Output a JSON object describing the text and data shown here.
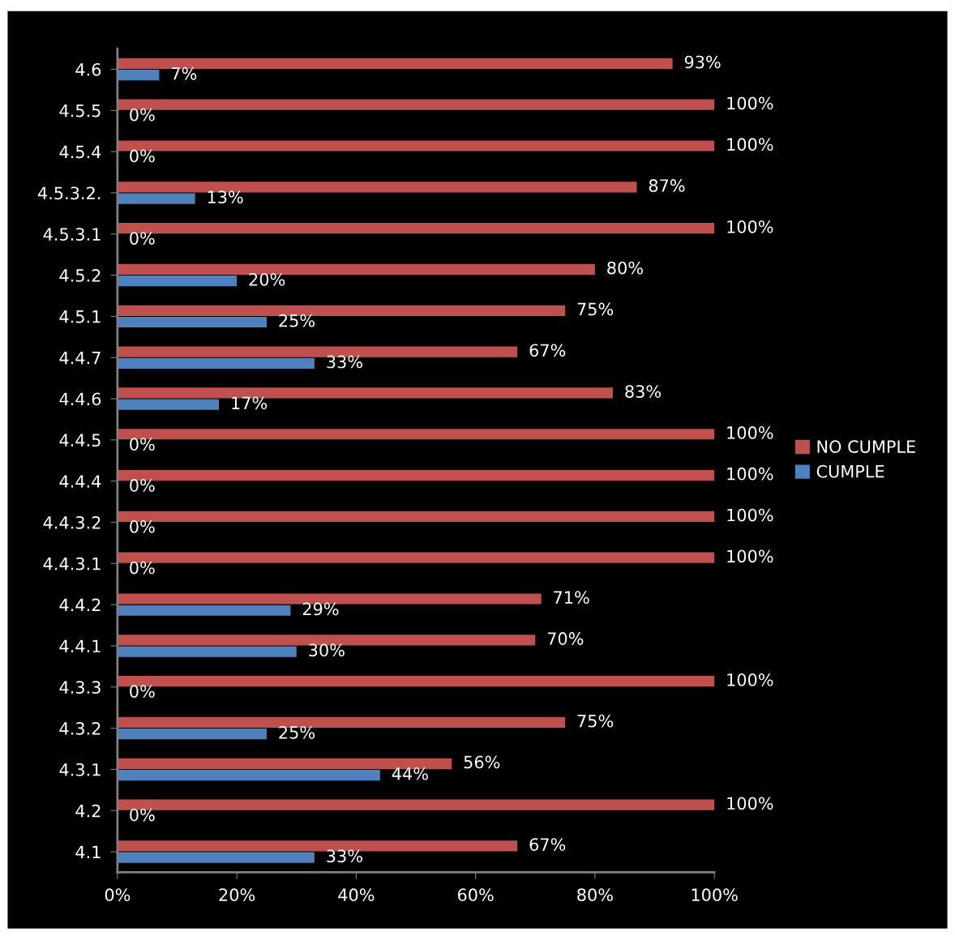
{
  "chart_data": {
    "type": "bar",
    "orientation": "horizontal",
    "categories": [
      "4.6",
      "4.5.5",
      "4.5.4",
      "4.5.3.2.",
      "4.5.3.1",
      "4.5.2",
      "4.5.1",
      "4.4.7",
      "4.4.6",
      "4.4.5",
      "4.4.4",
      "4.4.3.2",
      "4.4.3.1",
      "4.4.2",
      "4.4.1",
      "4.3.3",
      "4.3.2",
      "4.3.1",
      "4.2",
      "4.1"
    ],
    "series": [
      {
        "name": "NO CUMPLE",
        "color": "#c0504d",
        "values": [
          93,
          100,
          100,
          87,
          100,
          80,
          75,
          67,
          83,
          100,
          100,
          100,
          100,
          71,
          70,
          100,
          75,
          56,
          100,
          67
        ],
        "value_labels": [
          "93%",
          "100%",
          "100%",
          "87%",
          "100%",
          "80%",
          "75%",
          "67%",
          "83%",
          "100%",
          "100%",
          "100%",
          "100%",
          "71%",
          "70%",
          "100%",
          "75%",
          "56%",
          "100%",
          "67%"
        ]
      },
      {
        "name": "CUMPLE",
        "color": "#4f81bd",
        "values": [
          7,
          0,
          0,
          13,
          0,
          20,
          25,
          33,
          17,
          0,
          0,
          0,
          0,
          29,
          30,
          0,
          25,
          44,
          0,
          33
        ],
        "value_labels": [
          "7%",
          "0%",
          "0%",
          "13%",
          "0%",
          "20%",
          "25%",
          "33%",
          "17%",
          "0%",
          "0%",
          "0%",
          "0%",
          "29%",
          "30%",
          "0%",
          "25%",
          "44%",
          "0%",
          "33%"
        ]
      }
    ],
    "xlim": [
      0,
      100
    ],
    "xticks": [
      {
        "value": 0,
        "label": "0%"
      },
      {
        "value": 20,
        "label": "20%"
      },
      {
        "value": 40,
        "label": "40%"
      },
      {
        "value": 60,
        "label": "60%"
      },
      {
        "value": 80,
        "label": "80%"
      },
      {
        "value": 100,
        "label": "100%"
      }
    ],
    "legend": "right",
    "grid": false
  }
}
